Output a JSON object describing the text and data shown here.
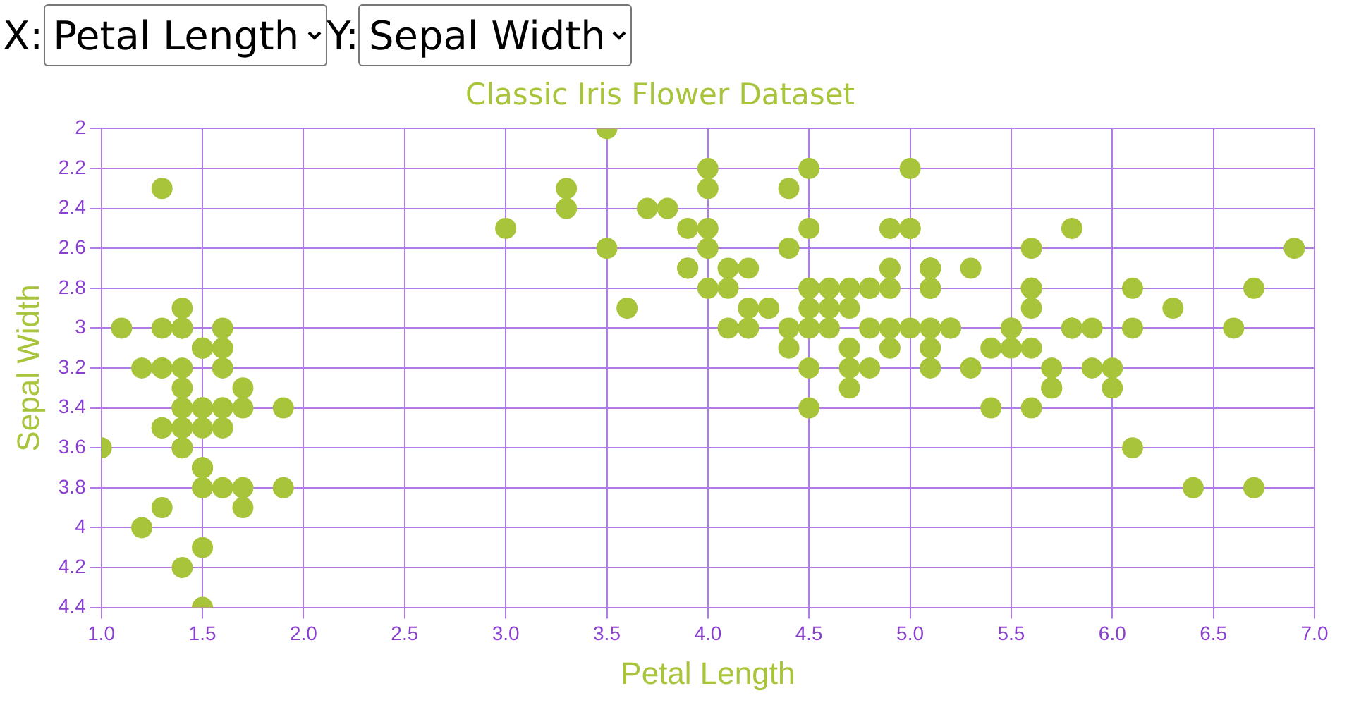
{
  "chart_data": {
    "type": "scatter",
    "title": "Classic Iris Flower Dataset",
    "xlabel": "Petal Length",
    "ylabel": "Sepal Width",
    "annotations": [
      "X:",
      "Petal Length",
      "Y:",
      "Sepal Width"
    ],
    "x": [
      1.4,
      1.4,
      1.3,
      1.5,
      1.4,
      1.7,
      1.4,
      1.5,
      1.4,
      1.5,
      1.5,
      1.6,
      1.4,
      1.1,
      1.2,
      1.5,
      1.3,
      1.4,
      1.7,
      1.5,
      1.7,
      1.5,
      1.0,
      1.7,
      1.9,
      1.6,
      1.6,
      1.5,
      1.4,
      1.6,
      1.6,
      1.5,
      1.5,
      1.4,
      1.5,
      1.2,
      1.3,
      1.4,
      1.3,
      1.5,
      1.3,
      1.3,
      1.3,
      1.6,
      1.9,
      1.4,
      1.6,
      1.4,
      1.5,
      1.4,
      4.7,
      4.5,
      4.9,
      4.0,
      4.6,
      4.5,
      4.7,
      3.3,
      4.6,
      3.9,
      3.5,
      4.2,
      4.0,
      4.7,
      3.6,
      4.4,
      4.5,
      4.1,
      4.5,
      3.9,
      4.8,
      4.0,
      4.9,
      4.7,
      4.3,
      4.4,
      4.8,
      5.0,
      4.5,
      3.5,
      3.8,
      3.7,
      3.9,
      5.1,
      4.5,
      4.5,
      4.7,
      4.4,
      4.1,
      4.0,
      4.4,
      4.6,
      4.0,
      3.3,
      4.2,
      4.2,
      4.2,
      4.3,
      3.0,
      4.1,
      6.0,
      5.1,
      5.9,
      5.6,
      5.8,
      6.6,
      4.5,
      6.3,
      5.8,
      6.1,
      5.1,
      5.3,
      5.5,
      5.0,
      5.1,
      5.3,
      5.5,
      6.7,
      6.9,
      5.0,
      5.7,
      4.9,
      6.7,
      4.9,
      5.7,
      6.0,
      4.8,
      4.9,
      5.6,
      5.8,
      6.1,
      6.4,
      5.6,
      5.1,
      5.6,
      6.1,
      5.6,
      5.5,
      4.8,
      5.4,
      5.6,
      5.1,
      5.1,
      5.9,
      5.7,
      5.2,
      5.0,
      5.2,
      5.4,
      5.1
    ],
    "values": [
      3.5,
      3.0,
      3.2,
      3.1,
      3.6,
      3.9,
      3.4,
      3.4,
      2.9,
      3.1,
      3.7,
      3.4,
      3.0,
      3.0,
      4.0,
      4.4,
      3.9,
      3.5,
      3.8,
      3.8,
      3.4,
      3.7,
      3.6,
      3.3,
      3.4,
      3.0,
      3.4,
      3.5,
      3.4,
      3.2,
      3.1,
      3.4,
      4.1,
      4.2,
      3.1,
      3.2,
      3.5,
      3.6,
      3.0,
      3.4,
      3.5,
      2.3,
      3.2,
      3.5,
      3.8,
      3.0,
      3.8,
      3.2,
      3.7,
      3.3,
      3.2,
      3.2,
      3.1,
      2.3,
      2.8,
      2.8,
      3.3,
      2.4,
      2.9,
      2.7,
      2.0,
      3.0,
      2.2,
      2.9,
      2.9,
      3.1,
      3.0,
      2.7,
      2.2,
      2.5,
      3.2,
      2.8,
      2.5,
      2.8,
      2.9,
      3.0,
      2.8,
      3.0,
      2.9,
      2.6,
      2.4,
      2.4,
      2.7,
      2.7,
      3.0,
      3.4,
      3.1,
      2.3,
      3.0,
      2.5,
      2.6,
      3.0,
      2.6,
      2.3,
      2.7,
      3.0,
      2.9,
      2.9,
      2.5,
      2.8,
      3.3,
      2.7,
      3.0,
      2.9,
      3.0,
      3.0,
      2.5,
      2.9,
      2.5,
      3.6,
      3.2,
      2.7,
      3.0,
      2.5,
      2.8,
      3.2,
      3.0,
      3.8,
      2.6,
      2.2,
      3.2,
      2.8,
      2.8,
      2.7,
      3.3,
      3.2,
      2.8,
      3.0,
      2.8,
      3.0,
      2.8,
      3.8,
      2.8,
      2.8,
      2.6,
      3.0,
      3.4,
      3.1,
      3.0,
      3.1,
      3.1,
      3.1,
      2.7,
      3.2,
      3.3,
      3.0,
      2.5,
      3.0,
      3.4,
      3.0
    ],
    "color": "#a8c43a",
    "marker": "circle",
    "grid": true,
    "xlim": [
      1,
      7
    ],
    "xticks": [
      {
        "value": 1,
        "label": "1.0"
      },
      1.5,
      {
        "value": 2,
        "label": "2.0"
      },
      2.5,
      {
        "value": 3,
        "label": "3.0"
      },
      3.5,
      {
        "value": 4,
        "label": "4.0"
      },
      4.5,
      {
        "value": 5,
        "label": "5.0"
      },
      5.5,
      {
        "value": 6,
        "label": "6.0"
      },
      6.5,
      {
        "value": 7,
        "label": "7.0"
      }
    ],
    "ylim": [
      4.4,
      2
    ],
    "yticks": [
      2,
      2.2,
      2.4,
      2.6,
      2.8,
      3,
      3.2,
      3.4,
      3.6,
      3.8,
      4,
      4.2,
      4.4
    ]
  }
}
